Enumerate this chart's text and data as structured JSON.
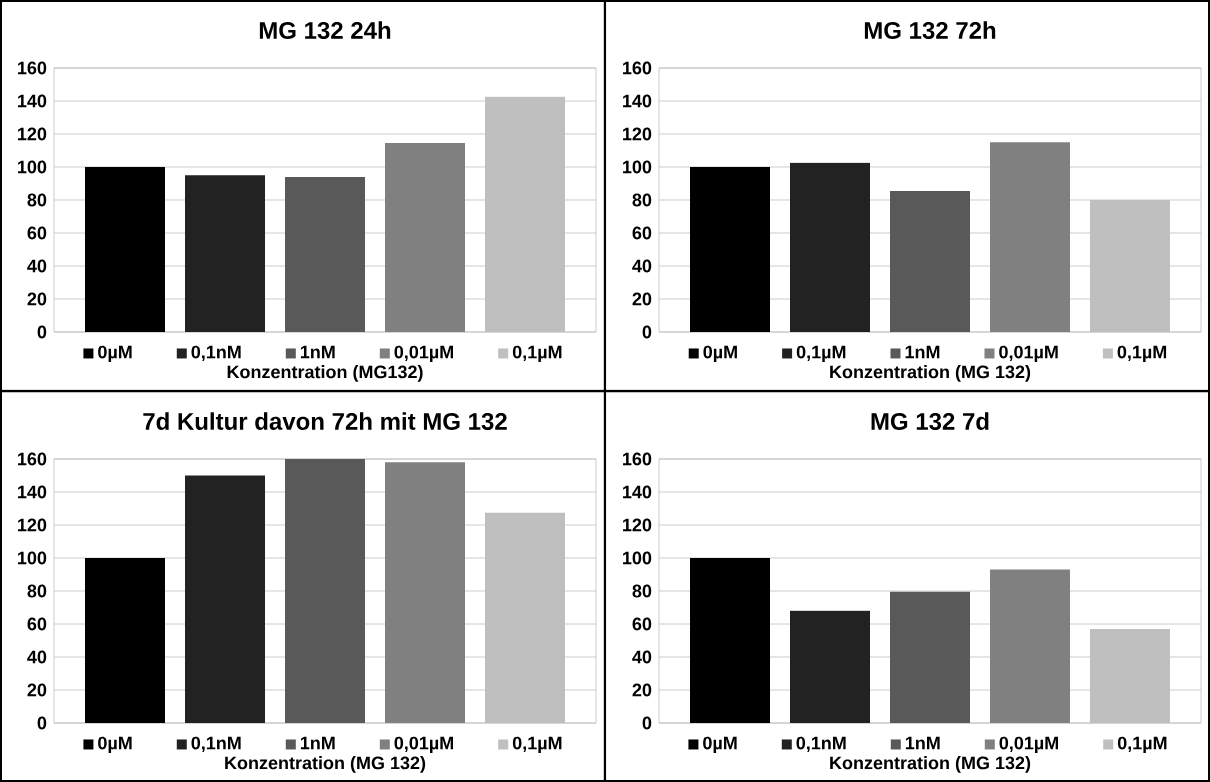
{
  "chart_data": [
    {
      "type": "bar",
      "title": "MG 132 24h",
      "xlabel": "Konzentration (MG132)",
      "categories": [
        null
      ],
      "ylim": [
        0,
        160
      ],
      "yticks": [
        0,
        20,
        40,
        60,
        80,
        100,
        120,
        140,
        160
      ],
      "grid": "y",
      "legend": "bottom",
      "tick_labels": "y",
      "series": [
        {
          "name": "0µM",
          "color": "#000000",
          "values": [
            100
          ]
        },
        {
          "name": "0,1nM",
          "color": "#222222",
          "values": [
            95
          ]
        },
        {
          "name": "1nM",
          "color": "#595959",
          "values": [
            94
          ]
        },
        {
          "name": "0,01µM",
          "color": "#808080",
          "values": [
            114.5
          ]
        },
        {
          "name": "0,1µM",
          "color": "#bfbfbf",
          "values": [
            142.5
          ]
        }
      ]
    },
    {
      "type": "bar",
      "title": "MG 132 72h",
      "xlabel": "Konzentration (MG 132)",
      "categories": [
        null
      ],
      "ylim": [
        0,
        160
      ],
      "yticks": [
        0,
        20,
        40,
        60,
        80,
        100,
        120,
        140,
        160
      ],
      "grid": "y",
      "legend": "bottom",
      "tick_labels": "y",
      "series": [
        {
          "name": "0µM",
          "color": "#000000",
          "values": [
            100
          ]
        },
        {
          "name": "0,1µM",
          "color": "#222222",
          "values": [
            102.5
          ]
        },
        {
          "name": "1nM",
          "color": "#595959",
          "values": [
            85.5
          ]
        },
        {
          "name": "0,01µM",
          "color": "#808080",
          "values": [
            115
          ]
        },
        {
          "name": "0,1µM",
          "color": "#bfbfbf",
          "values": [
            80
          ]
        }
      ]
    },
    {
      "type": "bar",
      "title": "7d Kultur davon 72h mit MG 132",
      "xlabel": "Konzentration (MG 132)",
      "categories": [
        null
      ],
      "ylim": [
        0,
        160
      ],
      "yticks": [
        0,
        20,
        40,
        60,
        80,
        100,
        120,
        140,
        160
      ],
      "grid": "y",
      "legend": "bottom",
      "tick_labels": "y",
      "series": [
        {
          "name": "0µM",
          "color": "#000000",
          "values": [
            100
          ]
        },
        {
          "name": "0,1nM",
          "color": "#222222",
          "values": [
            150
          ]
        },
        {
          "name": "1nM",
          "color": "#595959",
          "values": [
            160
          ]
        },
        {
          "name": "0,01µM",
          "color": "#808080",
          "values": [
            158
          ]
        },
        {
          "name": "0,1µM",
          "color": "#bfbfbf",
          "values": [
            127.5
          ]
        }
      ]
    },
    {
      "type": "bar",
      "title": "MG 132 7d",
      "xlabel": "Konzentration (MG 132)",
      "categories": [
        null
      ],
      "ylim": [
        0,
        160
      ],
      "yticks": [
        0,
        20,
        40,
        60,
        80,
        100,
        120,
        140,
        160
      ],
      "grid": "y",
      "legend": "bottom",
      "tick_labels": "y",
      "series": [
        {
          "name": "0µM",
          "color": "#000000",
          "values": [
            100
          ]
        },
        {
          "name": "0,1nM",
          "color": "#222222",
          "values": [
            68
          ]
        },
        {
          "name": "1nM",
          "color": "#595959",
          "values": [
            79.5
          ]
        },
        {
          "name": "0,01µM",
          "color": "#808080",
          "values": [
            93
          ]
        },
        {
          "name": "0,1µM",
          "color": "#bfbfbf",
          "values": [
            57
          ]
        }
      ]
    }
  ]
}
